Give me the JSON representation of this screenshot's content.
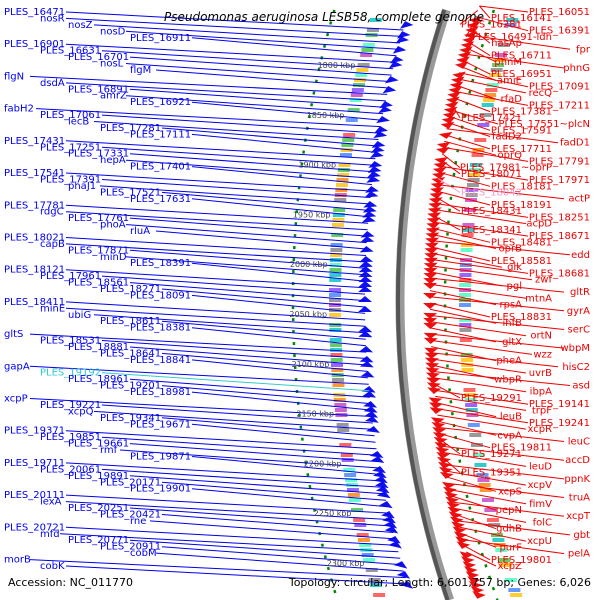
{
  "title": "Pseudomonas aeruginosa LESB58, complete genome",
  "footer": {
    "accession": "Accession: NC_011770",
    "summary": "Topology: circular; Length: 6,601,757 bp; Genes: 6,026"
  },
  "colors": {
    "reverse_label": "#0000ee",
    "forward_label": "#ee0000",
    "highlight_cyan": "#33cccc",
    "highlight_pink": "#ee99cc",
    "backbone": "#555555",
    "tick_marks": "#008800"
  },
  "ticks": [
    "1800 kbp",
    "1850 kbp",
    "1900 kbp",
    "1950 kbp",
    "2000 kbp",
    "2050 kbp",
    "2100 kbp",
    "2150 kbp",
    "2200 kbp",
    "2250 kbp",
    "2300 kbp"
  ],
  "left_labels": [
    "PLES_16471",
    "nosR",
    "nosZ",
    "nosD",
    "PLES_16911",
    "PLES_16901",
    "PLES_16631",
    "PLES_16701",
    "nosL",
    "flgM",
    "flgN",
    "dsdA",
    "PLES_16891",
    "amrZ",
    "PLES_16921",
    "fabH2",
    "PLES_17061",
    "lecB",
    "PLES_17281",
    "PLES_17111",
    "PLES_17431",
    "PLES_17251",
    "PLES_17331",
    "hepA",
    "PLES_17401",
    "PLES_17541",
    "PLES_17391",
    "phaJ1",
    "PLES_17521",
    "PLES_17631",
    "PLES_17781",
    "rdgC",
    "PLES_17761",
    "phoA",
    "rluA",
    "PLES_18021",
    "capB",
    "PLES_17871",
    "minD",
    "PLES_18391",
    "PLES_18121",
    "PLES_17961",
    "PLES_18561",
    "PLES_18271",
    "PLES_18091",
    "PLES_18411",
    "minE",
    "ubiG",
    "PLES_18611",
    "PLES_18381",
    "gltS",
    "PLES_18531",
    "PLES_18881",
    "PLES_18641",
    "PLES_18841",
    "gapA",
    "PLES_19192",
    "PLES_18961",
    "PLES_19201",
    "PLES_18981",
    "xcpP",
    "PLES_19221",
    "xcpQ",
    "PLES_19341",
    "PLES_19671",
    "PLES_19371",
    "PLES_19851",
    "PLES_19661",
    "rmf",
    "PLES_19871",
    "PLES_19711",
    "PLES_20061",
    "PLES_19891",
    "PLES_20171",
    "PLES_19901",
    "PLES_20111",
    "lexA",
    "PLES_20251",
    "PLES_20421",
    "rne",
    "PLES_20721",
    "mfd",
    "PLES_20771",
    "PLES_20911",
    "cobM",
    "morB",
    "cobK"
  ],
  "right_labels": [
    "PLES_16051",
    "PLES_16141",
    "PLES_16281",
    "PLES_16391",
    "PLES_16491-ldh",
    "hasAp",
    "fpr",
    "PLES_16711",
    "phnM",
    "phnG",
    "PLES_16951",
    "amiE",
    "PLES_17091",
    "recQ",
    "rfaD",
    "PLES_17211",
    "PLES_17381",
    "PLES_17421",
    "PLES_17551~plcN",
    "PLES_17591",
    "fadD2",
    "fadD1",
    "PLES_17711",
    "oprQ",
    "PLES_17791",
    "PLES_17981~oprP",
    "PLES_18071",
    "PLES_17971",
    "PLES_18181",
    "PLES_18042",
    "actP",
    "PLES_18191",
    "PLES_18431",
    "PLES_18251",
    "acpD",
    "PLES_18341",
    "PLES_18671",
    "PLES_18481",
    "oprB",
    "edd",
    "PLES_18581",
    "glk",
    "PLES_18681",
    "zwf",
    "pgl",
    "gltR",
    "mtnA",
    "rpsA",
    "gyrA",
    "PLES_18831",
    "ihfB",
    "serC",
    "ortN",
    "gltX",
    "wbpM",
    "wzz",
    "pheA",
    "hisC2",
    "uvrB",
    "wbpR",
    "asd",
    "ibpA",
    "PLES_19291",
    "PLES_19141",
    "trpF",
    "leuB",
    "PLES_19241",
    "xcpR",
    "cvpA",
    "leuC",
    "PLES_19811",
    "PLES_19271",
    "accD",
    "leuD",
    "PLES_19351",
    "ppnK",
    "xcpV",
    "xcpS",
    "truA",
    "fimV",
    "pepN",
    "xcpT",
    "folC",
    "gdhB",
    "gbt",
    "xcpU",
    "purF",
    "pelA",
    "PLES_19801",
    "xcpZ"
  ]
}
